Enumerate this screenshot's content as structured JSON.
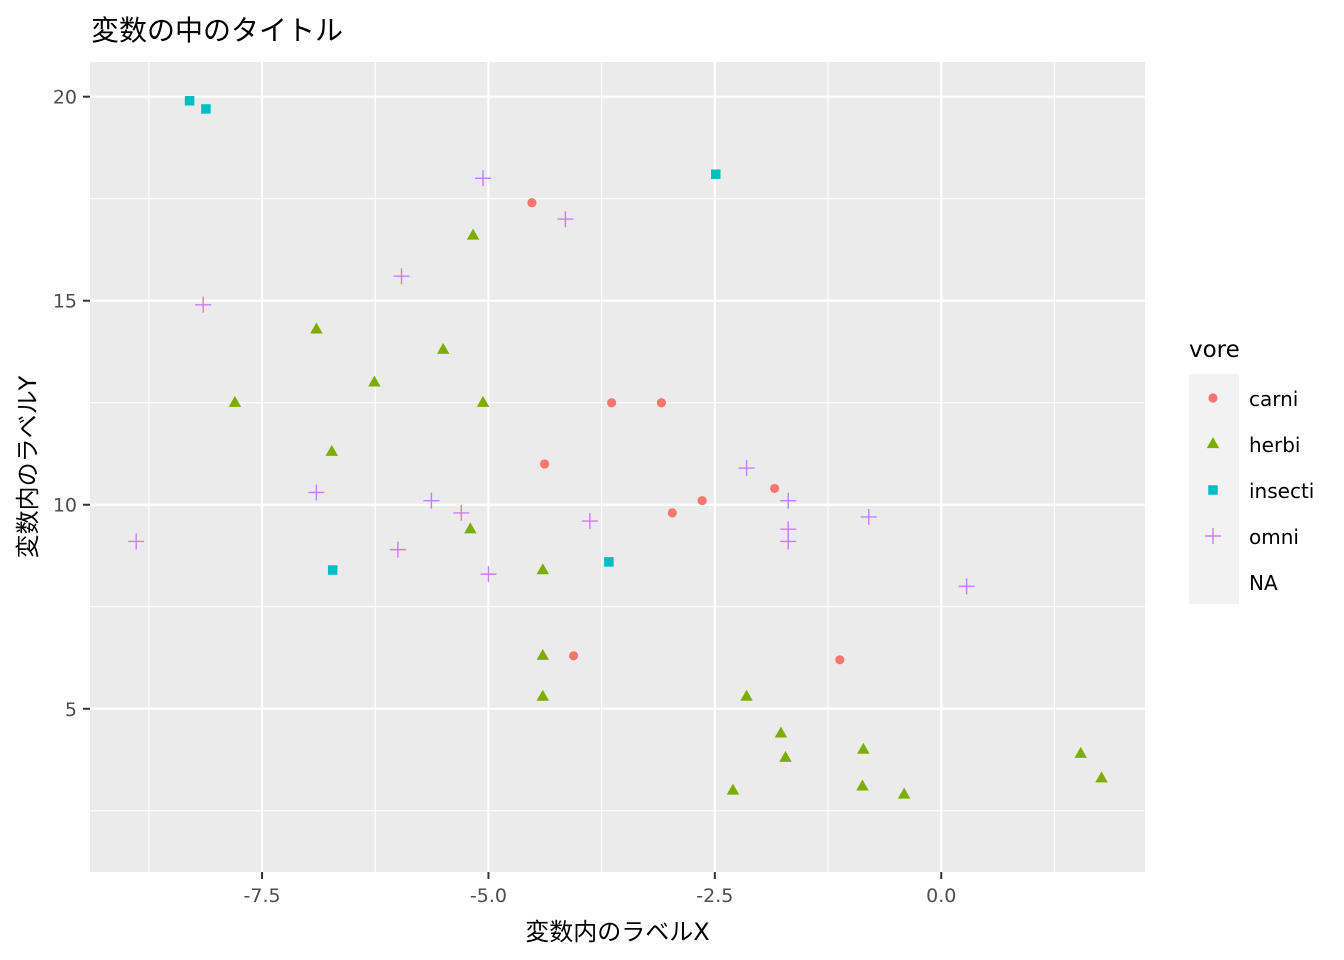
{
  "chart_data": {
    "type": "scatter",
    "title": "変数の中のタイトル",
    "xlabel": "変数内のラベルX",
    "ylabel": "変数内のラベルY",
    "xlim": [
      -9.4,
      2.25
    ],
    "ylim": [
      1.0,
      20.85
    ],
    "x_ticks": [
      -7.5,
      -5.0,
      -2.5,
      0.0
    ],
    "x_tick_labels": [
      "-7.5",
      "-5.0",
      "-2.5",
      "0.0"
    ],
    "y_ticks": [
      5,
      10,
      15,
      20
    ],
    "y_tick_labels": [
      "5",
      "10",
      "15",
      "20"
    ],
    "grid": true,
    "legend_position": "right",
    "legend": {
      "title": "vore",
      "entries": [
        {
          "label": "carni",
          "color": "#F8766D",
          "shape": "circle"
        },
        {
          "label": "herbi",
          "color": "#7CAE00",
          "shape": "triangle"
        },
        {
          "label": "insecti",
          "color": "#00BFC4",
          "shape": "square"
        },
        {
          "label": "omni",
          "color": "#C77CFF",
          "shape": "plus"
        },
        {
          "label": "NA",
          "color": "",
          "shape": "none"
        }
      ]
    },
    "series": [
      {
        "name": "carni",
        "points": [
          [
            -4.52,
            17.4
          ],
          [
            -3.64,
            12.5
          ],
          [
            -3.09,
            12.5
          ],
          [
            -4.38,
            11.0
          ],
          [
            -2.64,
            10.1
          ],
          [
            -2.97,
            9.8
          ],
          [
            -1.84,
            10.4
          ],
          [
            -4.06,
            6.3
          ],
          [
            -1.12,
            6.2
          ]
        ]
      },
      {
        "name": "herbi",
        "points": [
          [
            -5.17,
            16.6
          ],
          [
            -6.9,
            14.3
          ],
          [
            -5.5,
            13.8
          ],
          [
            -6.26,
            13.0
          ],
          [
            -7.8,
            12.5
          ],
          [
            -5.06,
            12.5
          ],
          [
            -6.73,
            11.3
          ],
          [
            -5.2,
            9.4
          ],
          [
            -4.4,
            8.4
          ],
          [
            -4.4,
            6.3
          ],
          [
            -4.4,
            5.3
          ],
          [
            -2.15,
            5.3
          ],
          [
            -1.77,
            4.4
          ],
          [
            -1.72,
            3.8
          ],
          [
            -0.86,
            4.0
          ],
          [
            -0.87,
            3.1
          ],
          [
            -0.41,
            2.9
          ],
          [
            -2.3,
            3.0
          ],
          [
            1.54,
            3.9
          ],
          [
            1.77,
            3.3
          ]
        ]
      },
      {
        "name": "insecti",
        "points": [
          [
            -8.3,
            19.9
          ],
          [
            -8.12,
            19.7
          ],
          [
            -2.49,
            18.1
          ],
          [
            -6.72,
            8.4
          ],
          [
            -3.67,
            8.6
          ]
        ]
      },
      {
        "name": "omni",
        "points": [
          [
            -5.06,
            18.0
          ],
          [
            -4.15,
            17.0
          ],
          [
            -5.96,
            15.6
          ],
          [
            -8.15,
            14.9
          ],
          [
            -6.9,
            10.3
          ],
          [
            -5.63,
            10.1
          ],
          [
            -5.3,
            9.8
          ],
          [
            -3.88,
            9.6
          ],
          [
            -6.0,
            8.9
          ],
          [
            -5.0,
            8.3
          ],
          [
            -8.89,
            9.1
          ],
          [
            -2.15,
            10.9
          ],
          [
            -1.69,
            10.1
          ],
          [
            -1.69,
            9.4
          ],
          [
            -1.69,
            9.1
          ],
          [
            -0.8,
            9.7
          ],
          [
            0.28,
            8.0
          ]
        ]
      }
    ]
  }
}
